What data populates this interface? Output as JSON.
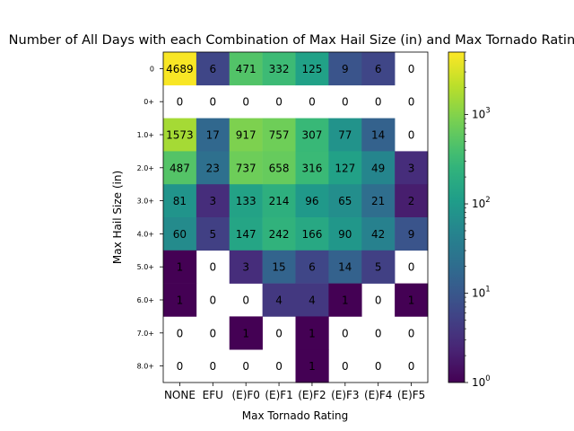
{
  "chart_data": {
    "type": "heatmap",
    "title": "Number of All Days with each Combination of Max Hail Size (in) and Max Tornado Rating",
    "xlabel": "Max Tornado Rating",
    "ylabel": "Max Hail Size (in)",
    "x_categories": [
      "NONE",
      "EFU",
      "(E)F0",
      "(E)F1",
      "(E)F2",
      "(E)F3",
      "(E)F4",
      "(E)F5"
    ],
    "y_categories": [
      "0",
      "0+",
      "1.0+",
      "2.0+",
      "3.0+",
      "4.0+",
      "5.0+",
      "6.0+",
      "7.0+",
      "8.0+"
    ],
    "values": [
      [
        4689,
        6,
        471,
        332,
        125,
        9,
        6,
        0
      ],
      [
        0,
        0,
        0,
        0,
        0,
        0,
        0,
        0
      ],
      [
        1573,
        17,
        917,
        757,
        307,
        77,
        14,
        0
      ],
      [
        487,
        23,
        737,
        658,
        316,
        127,
        49,
        3
      ],
      [
        81,
        3,
        133,
        214,
        96,
        65,
        21,
        2
      ],
      [
        60,
        5,
        147,
        242,
        166,
        90,
        42,
        9
      ],
      [
        1,
        0,
        3,
        15,
        6,
        14,
        5,
        0
      ],
      [
        1,
        0,
        0,
        4,
        4,
        1,
        0,
        1
      ],
      [
        0,
        0,
        1,
        0,
        1,
        0,
        0,
        0
      ],
      [
        0,
        0,
        0,
        0,
        1,
        0,
        0,
        0
      ]
    ],
    "colorscale": "viridis",
    "color_scale_type": "log",
    "zero_cells": "blank",
    "colorbar": {
      "range": [
        1,
        5000
      ],
      "ticks": [
        {
          "value": 1,
          "base": "10",
          "exp": "0"
        },
        {
          "value": 10,
          "base": "10",
          "exp": "1"
        },
        {
          "value": 100,
          "base": "10",
          "exp": "2"
        },
        {
          "value": 1000,
          "base": "10",
          "exp": "3"
        }
      ]
    }
  }
}
